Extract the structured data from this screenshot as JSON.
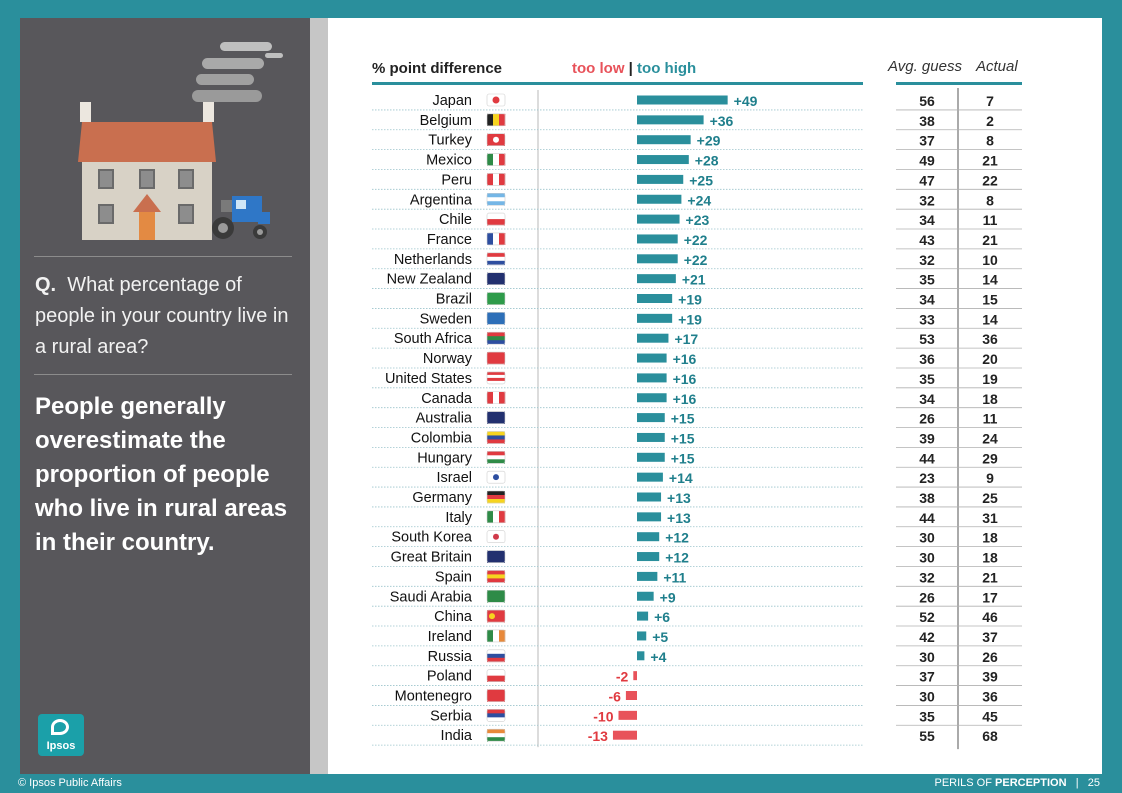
{
  "question": {
    "prefix": "Q.",
    "text": "What percentage of people in your country live in a rural area?"
  },
  "statement": "People generally overestimate the proportion of people who live in rural areas in their country.",
  "logo_text": "Ipsos",
  "footer": {
    "copyright": "© Ipsos Public Affairs",
    "series_prefix": "PERILS OF ",
    "series_strong": "PERCEPTION",
    "separator": "|",
    "page": "25"
  },
  "headers": {
    "difference": "% point difference",
    "too_low": "too low",
    "divider": "|",
    "too_high": "too high",
    "avg_guess": "Avg. guess",
    "actual": "Actual"
  },
  "colors": {
    "positive": "#2a8f9c",
    "negative": "#e8525a",
    "teal_text": "#1f7f8c",
    "red_text": "#e03a40"
  },
  "chart_data": {
    "type": "bar",
    "categories": [
      "Japan",
      "Belgium",
      "Turkey",
      "Mexico",
      "Peru",
      "Argentina",
      "Chile",
      "France",
      "Netherlands",
      "New Zealand",
      "Brazil",
      "Sweden",
      "South Africa",
      "Norway",
      "United States",
      "Canada",
      "Australia",
      "Colombia",
      "Hungary",
      "Israel",
      "Germany",
      "Italy",
      "South Korea",
      "Great Britain",
      "Spain",
      "Saudi Arabia",
      "China",
      "Ireland",
      "Russia",
      "Poland",
      "Montenegro",
      "Serbia",
      "India"
    ],
    "values": [
      49,
      36,
      29,
      28,
      25,
      24,
      23,
      22,
      22,
      21,
      19,
      19,
      17,
      16,
      16,
      16,
      15,
      15,
      15,
      14,
      13,
      13,
      12,
      12,
      11,
      9,
      6,
      5,
      4,
      -2,
      -6,
      -10,
      -13
    ],
    "labels": [
      "+49",
      "+36",
      "+29",
      "+28",
      "+25",
      "+24",
      "+23",
      "+22",
      "+22",
      "+21",
      "+19",
      "+19",
      "+17",
      "+16",
      "+16",
      "+16",
      "+15",
      "+15",
      "+15",
      "+14",
      "+13",
      "+13",
      "+12",
      "+12",
      "+11",
      "+9",
      "+6",
      "+5",
      "+4",
      "-2",
      "-6",
      "-10",
      "-13"
    ],
    "avg_guess": [
      56,
      38,
      37,
      49,
      47,
      32,
      34,
      43,
      32,
      35,
      34,
      33,
      53,
      36,
      35,
      34,
      26,
      39,
      44,
      23,
      38,
      44,
      30,
      30,
      32,
      26,
      52,
      42,
      30,
      37,
      30,
      35,
      55
    ],
    "actual": [
      7,
      2,
      8,
      21,
      22,
      8,
      11,
      21,
      10,
      14,
      15,
      14,
      36,
      20,
      19,
      18,
      11,
      24,
      29,
      9,
      25,
      31,
      18,
      18,
      21,
      17,
      46,
      37,
      26,
      39,
      36,
      45,
      68
    ],
    "flag_icons": [
      "japan-flag-icon",
      "belgium-flag-icon",
      "turkey-flag-icon",
      "mexico-flag-icon",
      "peru-flag-icon",
      "argentina-flag-icon",
      "chile-flag-icon",
      "france-flag-icon",
      "netherlands-flag-icon",
      "new-zealand-flag-icon",
      "brazil-flag-icon",
      "sweden-flag-icon",
      "south-africa-flag-icon",
      "norway-flag-icon",
      "united-states-flag-icon",
      "canada-flag-icon",
      "australia-flag-icon",
      "colombia-flag-icon",
      "hungary-flag-icon",
      "israel-flag-icon",
      "germany-flag-icon",
      "italy-flag-icon",
      "south-korea-flag-icon",
      "great-britain-flag-icon",
      "spain-flag-icon",
      "saudi-arabia-flag-icon",
      "china-flag-icon",
      "ireland-flag-icon",
      "russia-flag-icon",
      "poland-flag-icon",
      "montenegro-flag-icon",
      "serbia-flag-icon",
      "india-flag-icon"
    ],
    "grid": false
  }
}
